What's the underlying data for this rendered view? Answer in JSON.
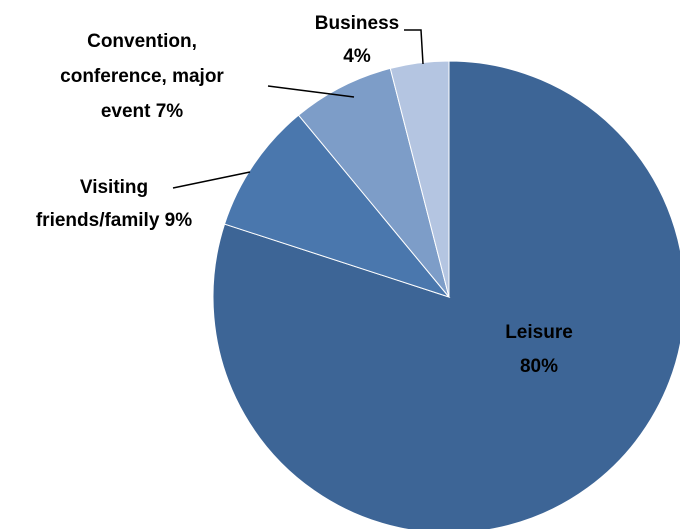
{
  "chart_data": {
    "type": "pie",
    "title": "",
    "start_angle_deg": 0,
    "direction": "clockwise",
    "slice_border": "#ffffff",
    "slices": [
      {
        "id": "leisure",
        "value": 80,
        "color": "#3d6596",
        "label_lines": [
          "Leisure",
          "80%"
        ],
        "label_position": "inside"
      },
      {
        "id": "visiting",
        "value": 9,
        "color": "#4a77ad",
        "label_lines": [
          "Visiting",
          "friends/family 9%"
        ],
        "label_position": "outside"
      },
      {
        "id": "convention",
        "value": 7,
        "color": "#7d9dc8",
        "label_lines": [
          "Convention,",
          "conference, major",
          "event 7%"
        ],
        "label_position": "outside"
      },
      {
        "id": "business",
        "value": 4,
        "color": "#b4c5e1",
        "label_lines": [
          "Business",
          "4%"
        ],
        "label_position": "outside"
      }
    ]
  }
}
